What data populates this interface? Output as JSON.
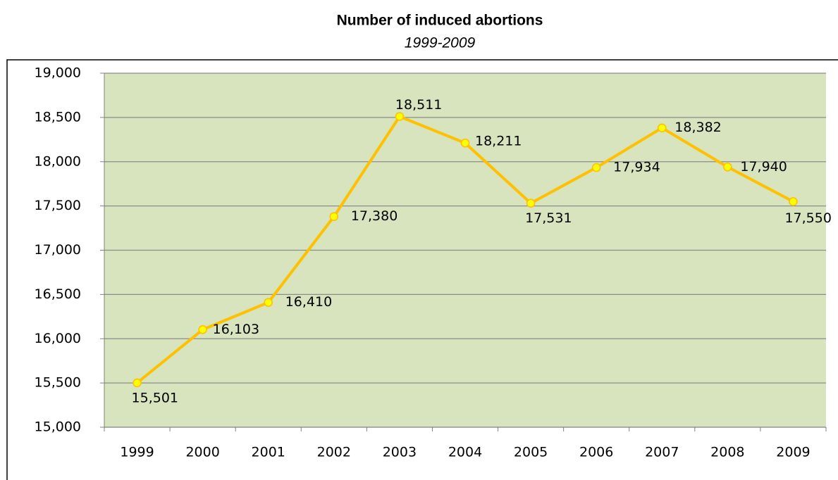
{
  "chart_data": {
    "type": "line",
    "title": "Number of induced abortions",
    "subtitle": "1999-2009",
    "categories": [
      "1999",
      "2000",
      "2001",
      "2002",
      "2003",
      "2004",
      "2005",
      "2006",
      "2007",
      "2008",
      "2009"
    ],
    "series": [
      {
        "name": "Number of induced abortions",
        "color": "#ffc000",
        "values": [
          15501,
          16103,
          16410,
          17380,
          18511,
          18211,
          17531,
          17934,
          18382,
          17940,
          17550
        ],
        "value_labels": [
          "15,501",
          "16,103",
          "16,410",
          "17,380",
          "18,511",
          "18,211",
          "17,531",
          "17,934",
          "18,382",
          "17,940",
          "17,550"
        ]
      }
    ],
    "ylim": [
      15000,
      19000
    ],
    "yticks": [
      {
        "value": 15000,
        "label": "15,000"
      },
      {
        "value": 15500,
        "label": "15,500"
      },
      {
        "value": 16000,
        "label": "16,000"
      },
      {
        "value": 16500,
        "label": "16,500"
      },
      {
        "value": 17000,
        "label": "17,000"
      },
      {
        "value": 17500,
        "label": "17,500"
      },
      {
        "value": 18000,
        "label": "18,000"
      },
      {
        "value": 18500,
        "label": "18,500"
      },
      {
        "value": 19000,
        "label": "19,000"
      }
    ],
    "grid": true,
    "plot_background": "#d7e4bd",
    "marker_color": "#ffff00"
  }
}
